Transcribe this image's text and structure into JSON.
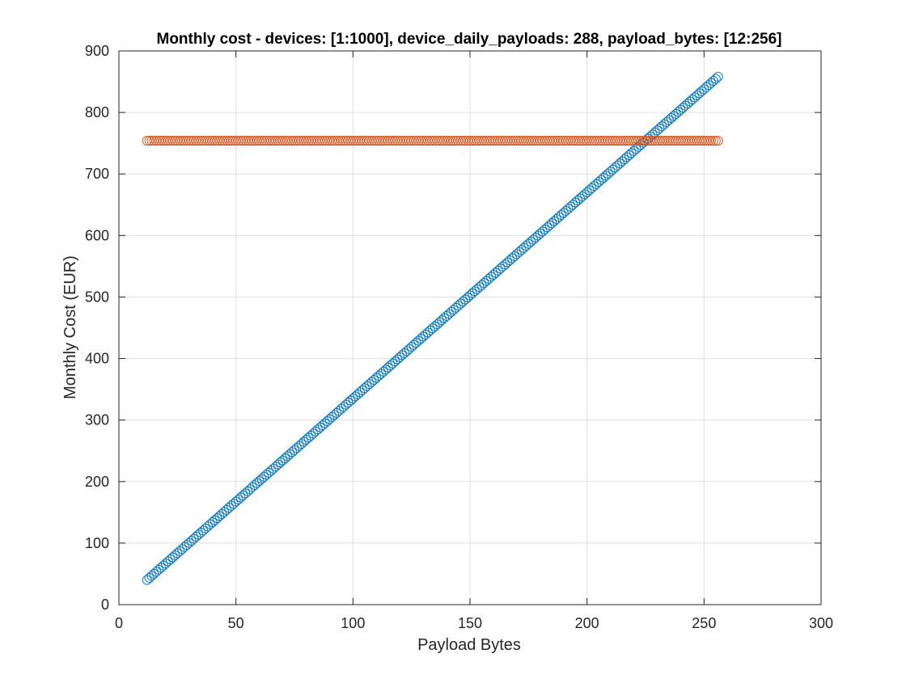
{
  "chart_data": {
    "type": "scatter",
    "title": "Monthly cost - devices: [1:1000], device_daily_payloads: 288, payload_bytes: [12:256]",
    "xlabel": "Payload Bytes",
    "ylabel": "Monthly Cost (EUR)",
    "xlim": [
      0,
      300
    ],
    "ylim": [
      0,
      900
    ],
    "xticks": [
      0,
      50,
      100,
      150,
      200,
      250,
      300
    ],
    "yticks": [
      0,
      100,
      200,
      300,
      400,
      500,
      600,
      700,
      800,
      900
    ],
    "xtick_labels": [
      "0",
      "50",
      "100",
      "150",
      "200",
      "250",
      "300"
    ],
    "ytick_labels": [
      "0",
      "100",
      "200",
      "300",
      "400",
      "500",
      "600",
      "700",
      "800",
      "900"
    ],
    "grid": true,
    "marker": "circle-open",
    "series": [
      {
        "color": "#0072BD",
        "x_range": [
          12,
          256
        ],
        "x_step": 1,
        "y_at_x_start": 40,
        "y_at_x_end": 858,
        "relation": "linear"
      },
      {
        "color": "#D95319",
        "x_range": [
          12,
          256
        ],
        "x_step": 1,
        "y_constant": 754
      }
    ]
  }
}
